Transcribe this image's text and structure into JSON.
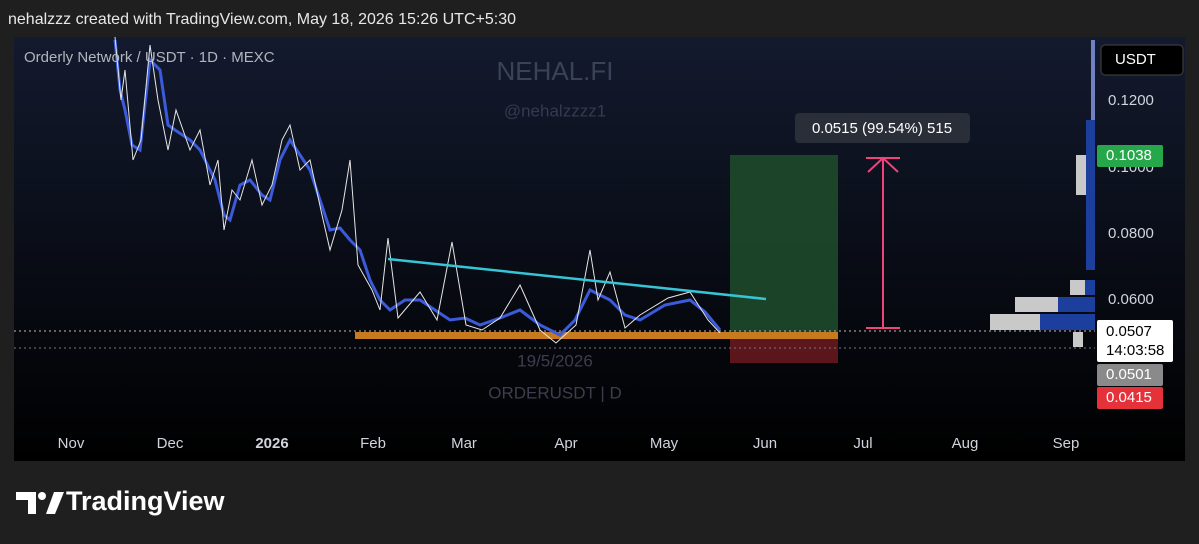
{
  "header": {
    "text": "nehalzzz created with TradingView.com, May 18, 2026 15:26 UTC+5:30"
  },
  "chart": {
    "symbol": "Orderly Network / USDT · 1D · MEXC",
    "watermark": {
      "title": "NEHAL.FI",
      "handle": "@nehalzzzz1",
      "date": "19/5/2026",
      "ticker": "ORDERUSDT | D"
    },
    "measure_label": "0.0515 (99.54%) 515",
    "price_axis": {
      "currency": "USDT",
      "labels": [
        "0.1200",
        "0.1000",
        "0.0800",
        "0.0600"
      ],
      "tags": {
        "target": "0.1038",
        "last": "0.0507",
        "countdown": "14:03:58",
        "entry": "0.0501",
        "stop": "0.0415"
      }
    },
    "time_axis": [
      "Nov",
      "Dec",
      "2026",
      "Feb",
      "Mar",
      "Apr",
      "May",
      "Jun",
      "Jul",
      "Aug",
      "Sep"
    ]
  },
  "footer": {
    "brand": "TradingView"
  }
}
